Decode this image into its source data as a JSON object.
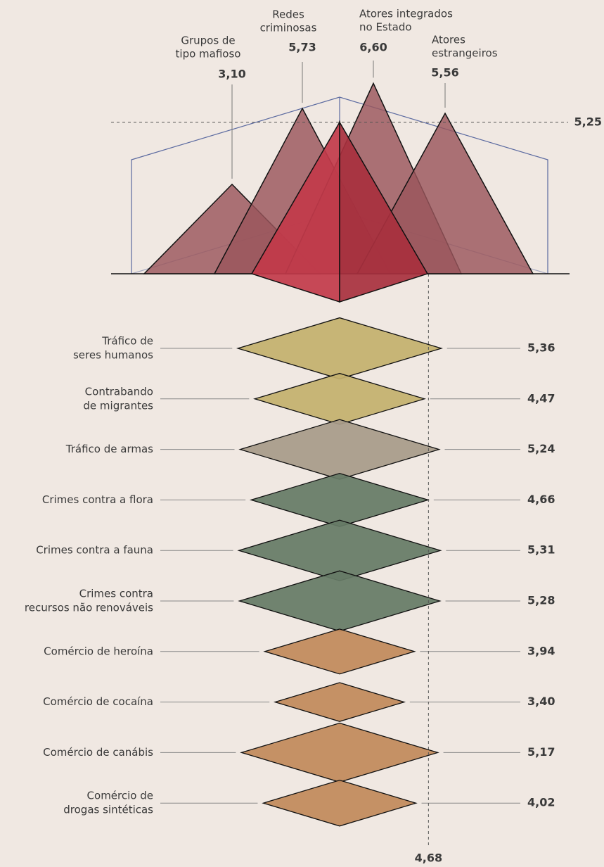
{
  "chart_data": [
    {
      "type": "pyramid",
      "categories": [
        [
          "Grupos de",
          "tipo mafioso"
        ],
        [
          "Redes",
          "criminosas"
        ],
        [
          "Atores integrados",
          "no Estado"
        ],
        [
          "Atores",
          "estrangeiros"
        ]
      ],
      "values": [
        3.1,
        5.73,
        6.6,
        5.56
      ],
      "value_labels": [
        "3,10",
        "5,73",
        "6,60",
        "5,56"
      ],
      "color": "#9a555b",
      "average": 5.25,
      "average_label": "5,25",
      "average_color": "#c23a4a"
    },
    {
      "type": "diamond",
      "categories": [
        [
          "Tráfico de",
          "seres humanos"
        ],
        [
          "Contrabando",
          "de migrantes"
        ],
        [
          "Tráfico de armas"
        ],
        [
          "Crimes contra a flora"
        ],
        [
          "Crimes contra a fauna"
        ],
        [
          "Crimes contra",
          "recursos não renováveis"
        ],
        [
          "Comércio de heroína"
        ],
        [
          "Comércio de cocaína"
        ],
        [
          "Comércio de canábis"
        ],
        [
          "Comércio de",
          "drogas sintéticas"
        ]
      ],
      "values": [
        5.36,
        4.47,
        5.24,
        4.66,
        5.31,
        5.28,
        3.94,
        3.4,
        5.17,
        4.02
      ],
      "value_labels": [
        "5,36",
        "4,47",
        "5,24",
        "4,66",
        "5,31",
        "5,28",
        "3,94",
        "3,40",
        "5,17",
        "4,02"
      ],
      "colors": [
        "#c4b06e",
        "#c4b06e",
        "#a89b8a",
        "#667b66",
        "#667b66",
        "#667b66",
        "#c28a5b",
        "#c28a5b",
        "#c28a5b",
        "#c28a5b"
      ],
      "label_colors": [
        "#b9a352",
        "#b9a352",
        "#a09484",
        "#5b725b",
        "#5b725b",
        "#5b725b",
        "#c0864f",
        "#c0864f",
        "#c0864f",
        "#c0864f"
      ],
      "average": 4.68,
      "average_label": "4,68",
      "average_color": "#c23a4a"
    }
  ]
}
